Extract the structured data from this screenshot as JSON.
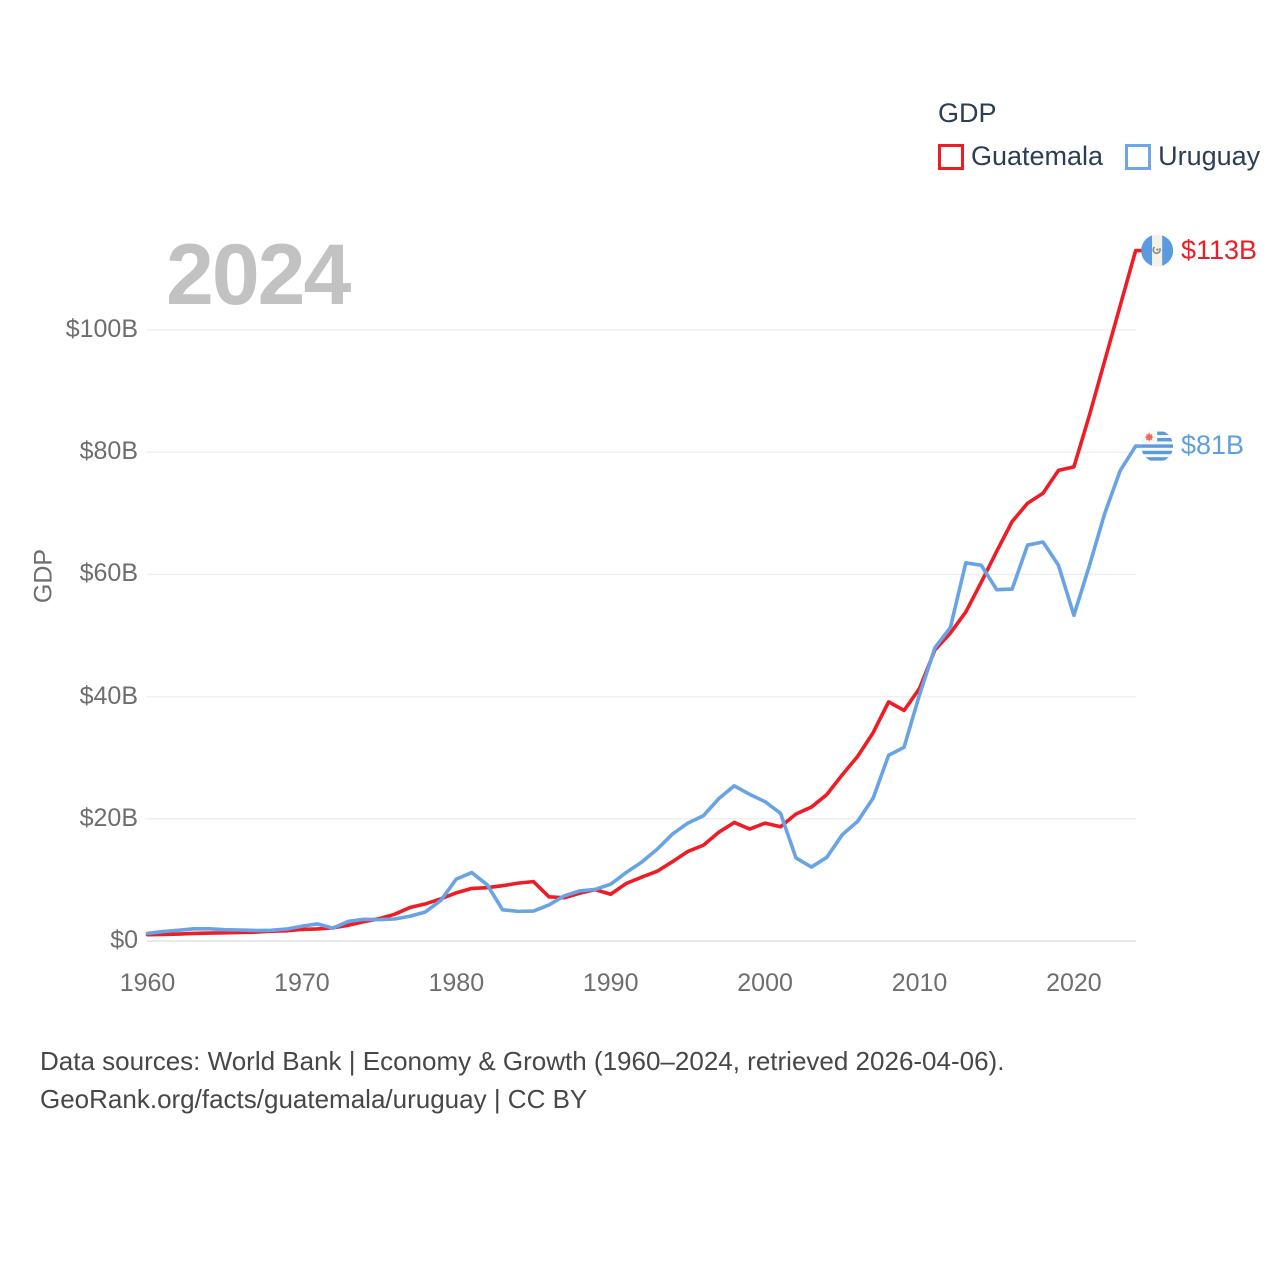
{
  "watermark_year": "2024",
  "legend": {
    "title": "GDP",
    "items": [
      {
        "label": "Guatemala",
        "color": "#ee1c25"
      },
      {
        "label": "Uruguay",
        "color": "#6fa6e5"
      }
    ]
  },
  "y_axis": {
    "title": "GDP",
    "ticks": [
      "$0",
      "$20B",
      "$40B",
      "$60B",
      "$80B",
      "$100B"
    ],
    "tick_values": [
      0,
      20,
      40,
      60,
      80,
      100
    ]
  },
  "x_axis": {
    "ticks": [
      "1960",
      "1970",
      "1980",
      "1990",
      "2000",
      "2010",
      "2020"
    ],
    "tick_values": [
      1960,
      1970,
      1980,
      1990,
      2000,
      2010,
      2020
    ]
  },
  "end_labels": [
    {
      "series": "Guatemala",
      "label": "$113B",
      "value": 113,
      "color": "#ee1c25",
      "flag": "guatemala-flag"
    },
    {
      "series": "Uruguay",
      "label": "$81B",
      "value": 81,
      "color": "#5f9fe0",
      "flag": "uruguay-flag"
    }
  ],
  "footer": {
    "line1": "Data sources: World Bank | Economy & Growth (1960–2024, retrieved 2026-04-06).",
    "line2": "GeoRank.org/facts/guatemala/uruguay | CC BY"
  },
  "chart_data": {
    "type": "line",
    "title": "GDP",
    "xlabel": "",
    "ylabel": "GDP",
    "xlim": [
      1960,
      2024
    ],
    "ylim": [
      0,
      113
    ],
    "grid": true,
    "legend_position": "top-right",
    "x": [
      1960,
      1961,
      1962,
      1963,
      1964,
      1965,
      1966,
      1967,
      1968,
      1969,
      1970,
      1971,
      1972,
      1973,
      1974,
      1975,
      1976,
      1977,
      1978,
      1979,
      1980,
      1981,
      1982,
      1983,
      1984,
      1985,
      1986,
      1987,
      1988,
      1989,
      1990,
      1991,
      1992,
      1993,
      1994,
      1995,
      1996,
      1997,
      1998,
      1999,
      2000,
      2001,
      2002,
      2003,
      2004,
      2005,
      2006,
      2007,
      2008,
      2009,
      2010,
      2011,
      2012,
      2013,
      2014,
      2015,
      2016,
      2017,
      2018,
      2019,
      2020,
      2021,
      2022,
      2023,
      2024
    ],
    "series": [
      {
        "name": "Guatemala",
        "color": "#ee1c25",
        "values": [
          1.04,
          1.08,
          1.14,
          1.24,
          1.3,
          1.33,
          1.39,
          1.45,
          1.6,
          1.66,
          1.9,
          1.98,
          2.16,
          2.57,
          3.16,
          3.65,
          4.37,
          5.48,
          6.07,
          6.9,
          7.88,
          8.61,
          8.72,
          9.05,
          9.47,
          9.72,
          7.23,
          7.08,
          7.84,
          8.41,
          7.65,
          9.41,
          10.44,
          11.4,
          12.98,
          14.66,
          15.67,
          17.79,
          19.4,
          18.32,
          19.29,
          18.7,
          20.78,
          21.92,
          23.97,
          27.21,
          30.23,
          34.11,
          39.14,
          37.73,
          41.34,
          47.65,
          50.39,
          53.85,
          58.72,
          63.77,
          68.66,
          71.65,
          73.28,
          77.02,
          77.6,
          86.0,
          95.0,
          104.0,
          113.0
        ]
      },
      {
        "name": "Uruguay",
        "color": "#68a3e5",
        "values": [
          1.24,
          1.55,
          1.75,
          2.0,
          2.0,
          1.85,
          1.8,
          1.72,
          1.75,
          1.95,
          2.42,
          2.8,
          2.1,
          3.2,
          3.55,
          3.5,
          3.6,
          4.05,
          4.75,
          6.65,
          10.13,
          11.2,
          9.2,
          5.1,
          4.85,
          4.9,
          5.9,
          7.4,
          8.2,
          8.45,
          9.3,
          11.2,
          12.9,
          15.0,
          17.5,
          19.3,
          20.5,
          23.3,
          25.4,
          24.0,
          22.8,
          20.9,
          13.6,
          12.1,
          13.7,
          17.4,
          19.6,
          23.4,
          30.4,
          31.7,
          40.3,
          48.0,
          51.3,
          61.9,
          61.5,
          57.5,
          57.6,
          64.8,
          65.3,
          61.5,
          53.3,
          61.4,
          70.0,
          77.0,
          81.0
        ]
      }
    ]
  }
}
